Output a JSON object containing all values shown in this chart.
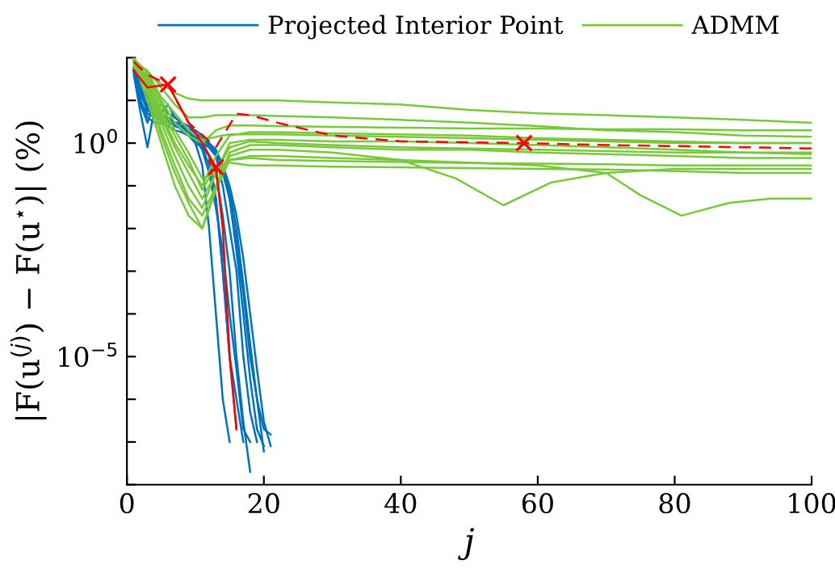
{
  "chart_data": {
    "type": "line",
    "xlabel": "j",
    "ylabel": "|F(u$^{(j)}$) − F(u$^{⋆}$)| (%)",
    "log": "y",
    "xlim": [
      0,
      100
    ],
    "xticks": [
      0,
      20,
      40,
      60,
      80,
      100
    ],
    "ylim": [
      1e-08,
      100
    ],
    "yticks": [
      {
        "value": 1e-08,
        "label": null
      },
      {
        "value": 1e-07,
        "label": null
      },
      {
        "value": 1e-06,
        "label": null
      },
      {
        "value": 1e-05,
        "label": "10$^{−5}$"
      },
      {
        "value": 0.0001,
        "label": null
      },
      {
        "value": 0.001,
        "label": null
      },
      {
        "value": 0.01,
        "label": null
      },
      {
        "value": 0.1,
        "label": null
      },
      {
        "value": 1,
        "label": "10$^{0}$"
      },
      {
        "value": 10,
        "label": null
      },
      {
        "value": 100,
        "label": null
      }
    ],
    "grid": false,
    "legend": "top",
    "line_style": "solid",
    "marker": "none",
    "series": [
      {
        "name": "Projected Interior Point",
        "color": "#0072bd",
        "x": [
          1,
          2,
          3,
          4,
          5,
          6,
          7,
          8,
          9,
          10,
          11,
          12,
          13,
          14,
          15
        ],
        "values": [
          50,
          8,
          3,
          10,
          5,
          8,
          4,
          3,
          2,
          1,
          0.3,
          0.01,
          0.0001,
          1e-06,
          1e-07
        ]
      },
      {
        "color": "#0072bd",
        "x": [
          1,
          2,
          3,
          4,
          5,
          6,
          7,
          8,
          9,
          10,
          11,
          12,
          13,
          14,
          15,
          16,
          17
        ],
        "values": [
          60,
          20,
          10,
          6,
          8,
          5,
          4,
          3,
          2.5,
          1.5,
          1,
          0.5,
          0.05,
          0.001,
          1e-05,
          1e-06,
          1e-07
        ]
      },
      {
        "color": "#0072bd",
        "x": [
          1,
          2,
          3,
          4,
          5,
          6,
          7,
          8,
          9,
          10,
          11,
          12,
          13,
          14,
          15,
          16,
          17,
          18
        ],
        "values": [
          40,
          5,
          0.8,
          6,
          4,
          3,
          3,
          2,
          1.5,
          1,
          0.8,
          0.5,
          0.2,
          0.02,
          0.001,
          1e-05,
          3e-07,
          2e-08
        ]
      },
      {
        "color": "#0072bd",
        "x": [
          1,
          2,
          3,
          4,
          5,
          6,
          7,
          8,
          9,
          10,
          11,
          12,
          13,
          14,
          15,
          16,
          17,
          18,
          19
        ],
        "values": [
          55,
          15,
          6,
          5,
          4,
          4,
          3,
          2.5,
          2,
          1.5,
          1,
          0.8,
          0.5,
          0.1,
          0.01,
          0.001,
          1e-05,
          5e-07,
          1e-07
        ]
      },
      {
        "color": "#0072bd",
        "x": [
          1,
          2,
          3,
          4,
          5,
          6,
          7,
          8,
          9,
          10,
          11,
          12,
          13,
          14,
          15,
          16,
          17,
          18,
          19,
          20
        ],
        "values": [
          50,
          12,
          8,
          6,
          5,
          4,
          3,
          3,
          2,
          2,
          1.5,
          1,
          0.6,
          0.3,
          0.05,
          0.003,
          0.0001,
          3e-06,
          2e-07,
          8e-08
        ]
      },
      {
        "color": "#0072bd",
        "x": [
          1,
          2,
          3,
          4,
          5,
          6,
          7,
          8,
          9,
          10,
          11,
          12,
          13,
          14,
          15,
          16,
          17,
          18,
          19,
          20,
          21
        ],
        "values": [
          45,
          10,
          4,
          3,
          3,
          2.5,
          2,
          1.8,
          1.5,
          1.2,
          1,
          0.8,
          0.5,
          0.2,
          0.05,
          0.005,
          0.0003,
          1e-05,
          1e-06,
          2e-07,
          1.5e-07
        ]
      },
      {
        "color": "#0072bd",
        "x": [
          1,
          2,
          3,
          4,
          5,
          6,
          7,
          8,
          9,
          10,
          11,
          12,
          13,
          14,
          15,
          16
        ],
        "values": [
          50,
          25,
          12,
          8,
          6,
          5,
          4,
          3,
          2,
          1.5,
          0.8,
          0.3,
          0.05,
          0.001,
          1e-05,
          2e-07
        ]
      },
      {
        "color": "#0072bd",
        "x": [
          1,
          2,
          3,
          4,
          5,
          6,
          7,
          8,
          9,
          10,
          11,
          12,
          13,
          14,
          15,
          16,
          17,
          18,
          19,
          20,
          21
        ],
        "values": [
          50,
          18,
          7,
          5,
          4,
          3.5,
          3,
          2.5,
          2,
          1.6,
          1.2,
          0.9,
          0.6,
          0.3,
          0.1,
          0.02,
          0.002,
          0.0001,
          5e-06,
          3e-07,
          8e-08
        ]
      },
      {
        "color": "#0072bd",
        "x": [
          1,
          2,
          3,
          4,
          5,
          6,
          7,
          8,
          9,
          10,
          11,
          12,
          13,
          14,
          15,
          16,
          17,
          18
        ],
        "values": [
          55,
          9,
          5,
          4,
          3.5,
          3,
          2.5,
          2.2,
          1.8,
          1.3,
          0.7,
          0.2,
          0.03,
          0.003,
          0.0001,
          5e-06,
          2e-07,
          1e-07
        ]
      },
      {
        "color": "#0072bd",
        "x": [
          1,
          2,
          3,
          4,
          5,
          6,
          7,
          8,
          9,
          10,
          11,
          12,
          13,
          14,
          15,
          16,
          17,
          18,
          19,
          20
        ],
        "values": [
          48,
          14,
          6,
          4.5,
          3.8,
          3.2,
          2.8,
          2.4,
          2,
          1.7,
          1.3,
          1,
          0.7,
          0.3,
          0.08,
          0.01,
          0.0005,
          2e-05,
          1e-06,
          6e-08
        ]
      },
      {
        "name": "ADMM",
        "color": "#77c93a",
        "x": [
          1,
          3,
          5,
          7,
          9,
          11,
          13,
          15,
          18,
          22,
          30,
          40,
          50,
          60,
          70,
          80,
          90,
          100
        ],
        "values": [
          60,
          40,
          25,
          15,
          11,
          10,
          10,
          10,
          10,
          10,
          9,
          8,
          6,
          5,
          4.5,
          4,
          3.5,
          3
        ]
      },
      {
        "color": "#77c93a",
        "x": [
          1,
          3,
          5,
          7,
          9,
          11,
          13,
          15,
          18,
          22,
          30,
          40,
          50,
          60,
          70,
          80,
          90,
          100
        ],
        "values": [
          80,
          50,
          20,
          8,
          4,
          4,
          4.5,
          4.5,
          4.5,
          4.3,
          4,
          3.5,
          3,
          2.5,
          2,
          1.8,
          1.5,
          1.4
        ]
      },
      {
        "color": "#77c93a",
        "x": [
          1,
          3,
          5,
          7,
          9,
          11,
          13,
          15,
          18,
          22,
          30,
          40,
          50,
          60,
          70,
          80,
          90,
          100
        ],
        "values": [
          70,
          40,
          10,
          3,
          1.5,
          1,
          2,
          2.6,
          2.6,
          2.5,
          2.4,
          2.3,
          2.2,
          2.2,
          2.1,
          2.1,
          2,
          2
        ]
      },
      {
        "color": "#77c93a",
        "x": [
          1,
          3,
          5,
          7,
          9,
          11,
          13,
          15,
          18,
          22,
          30,
          40,
          50,
          60,
          70,
          80,
          90,
          100
        ],
        "values": [
          90,
          30,
          5,
          1,
          0.3,
          0.1,
          0.5,
          1.5,
          1.8,
          1.8,
          1.7,
          1.6,
          1.5,
          1.3,
          1.2,
          1.1,
          1,
          1
        ]
      },
      {
        "color": "#77c93a",
        "x": [
          1,
          3,
          5,
          7,
          9,
          11,
          13,
          15,
          18,
          22,
          30,
          40,
          50,
          60,
          70,
          80,
          90,
          100
        ],
        "values": [
          100,
          20,
          3,
          0.5,
          0.1,
          0.03,
          0.2,
          1,
          1.2,
          1.2,
          1.1,
          1.1,
          1,
          0.9,
          0.8,
          0.7,
          0.6,
          0.55
        ]
      },
      {
        "color": "#77c93a",
        "x": [
          1,
          3,
          5,
          7,
          9,
          11,
          13,
          15,
          18,
          22,
          30,
          40,
          50,
          60,
          70,
          80,
          90,
          100
        ],
        "values": [
          80,
          10,
          1,
          0.1,
          0.02,
          0.01,
          0.1,
          0.6,
          0.9,
          0.9,
          0.8,
          0.7,
          0.7,
          0.6,
          0.55,
          0.5,
          0.45,
          0.45
        ]
      },
      {
        "color": "#77c93a",
        "x": [
          1,
          3,
          5,
          7,
          9,
          11,
          13,
          15,
          18,
          22,
          30,
          40,
          48,
          55,
          62,
          70,
          80,
          90,
          100
        ],
        "values": [
          90,
          20,
          2,
          0.3,
          0.05,
          0.02,
          0.1,
          0.5,
          0.7,
          0.7,
          0.6,
          0.4,
          0.15,
          0.035,
          0.12,
          0.2,
          0.25,
          0.25,
          0.25
        ]
      },
      {
        "color": "#77c93a",
        "x": [
          1,
          3,
          5,
          7,
          9,
          11,
          13,
          15,
          18,
          22,
          30,
          40,
          50,
          60,
          70,
          75,
          81,
          88,
          94,
          100
        ],
        "values": [
          100,
          15,
          1.5,
          0.2,
          0.04,
          0.01,
          0.08,
          0.4,
          0.5,
          0.5,
          0.45,
          0.4,
          0.35,
          0.3,
          0.2,
          0.06,
          0.02,
          0.04,
          0.05,
          0.05
        ]
      },
      {
        "color": "#77c93a",
        "x": [
          1,
          3,
          5,
          7,
          9,
          11,
          13,
          15,
          18,
          22,
          30,
          40,
          50,
          60,
          70,
          80,
          90,
          100
        ],
        "values": [
          70,
          25,
          4,
          0.8,
          0.2,
          0.05,
          0.2,
          0.8,
          1.1,
          1,
          0.9,
          0.8,
          0.75,
          0.7,
          0.65,
          0.6,
          0.6,
          0.6
        ]
      },
      {
        "color": "#77c93a",
        "x": [
          1,
          3,
          5,
          7,
          9,
          11,
          13,
          15,
          18,
          22,
          30,
          40,
          50,
          60,
          70,
          80,
          90,
          100
        ],
        "values": [
          60,
          30,
          6,
          1.5,
          0.4,
          0.08,
          0.3,
          0.35,
          0.3,
          0.3,
          0.28,
          0.27,
          0.26,
          0.25,
          0.24,
          0.22,
          0.2,
          0.2
        ]
      },
      {
        "color": "#77c93a",
        "x": [
          1,
          3,
          5,
          7,
          9,
          11,
          13,
          15,
          18,
          22,
          30,
          40,
          50,
          60,
          70,
          80,
          90,
          100
        ],
        "values": [
          85,
          35,
          8,
          2,
          0.6,
          0.15,
          0.2,
          0.4,
          0.45,
          0.4,
          0.38,
          0.36,
          0.34,
          0.33,
          0.32,
          0.3,
          0.3,
          0.3
        ]
      },
      {
        "color": "#77c93a",
        "x": [
          1,
          3,
          5,
          7,
          9,
          11,
          13,
          15,
          18,
          22,
          30,
          40,
          50,
          60,
          70,
          80,
          90,
          100
        ],
        "values": [
          95,
          45,
          12,
          5,
          2,
          1.2,
          1.4,
          1.6,
          1.6,
          1.6,
          1.5,
          1.4,
          1.3,
          1.2,
          1.1,
          1,
          1,
          1
        ]
      },
      {
        "color": "#ff0000",
        "x": [
          1,
          3,
          6,
          9,
          11,
          13,
          14,
          15,
          16
        ],
        "values": [
          50,
          20,
          23.6,
          3,
          1,
          0.27,
          0.01,
          1e-05,
          2e-07
        ]
      },
      {
        "color": "#ff0000",
        "line_style": "dashed",
        "x": [
          1,
          3,
          6,
          9,
          13,
          16,
          18,
          22,
          30,
          40,
          58,
          70,
          80,
          90,
          100
        ],
        "values": [
          80,
          40,
          23.6,
          3,
          0.8,
          4.9,
          4.5,
          3,
          1.5,
          1.1,
          1.0,
          0.9,
          0.85,
          0.8,
          0.75
        ]
      },
      {
        "type": "scatter",
        "marker": "cross",
        "color": "#ff0000",
        "x": [
          6,
          13,
          58
        ],
        "values": [
          23.6,
          0.27,
          1.0
        ]
      }
    ]
  }
}
